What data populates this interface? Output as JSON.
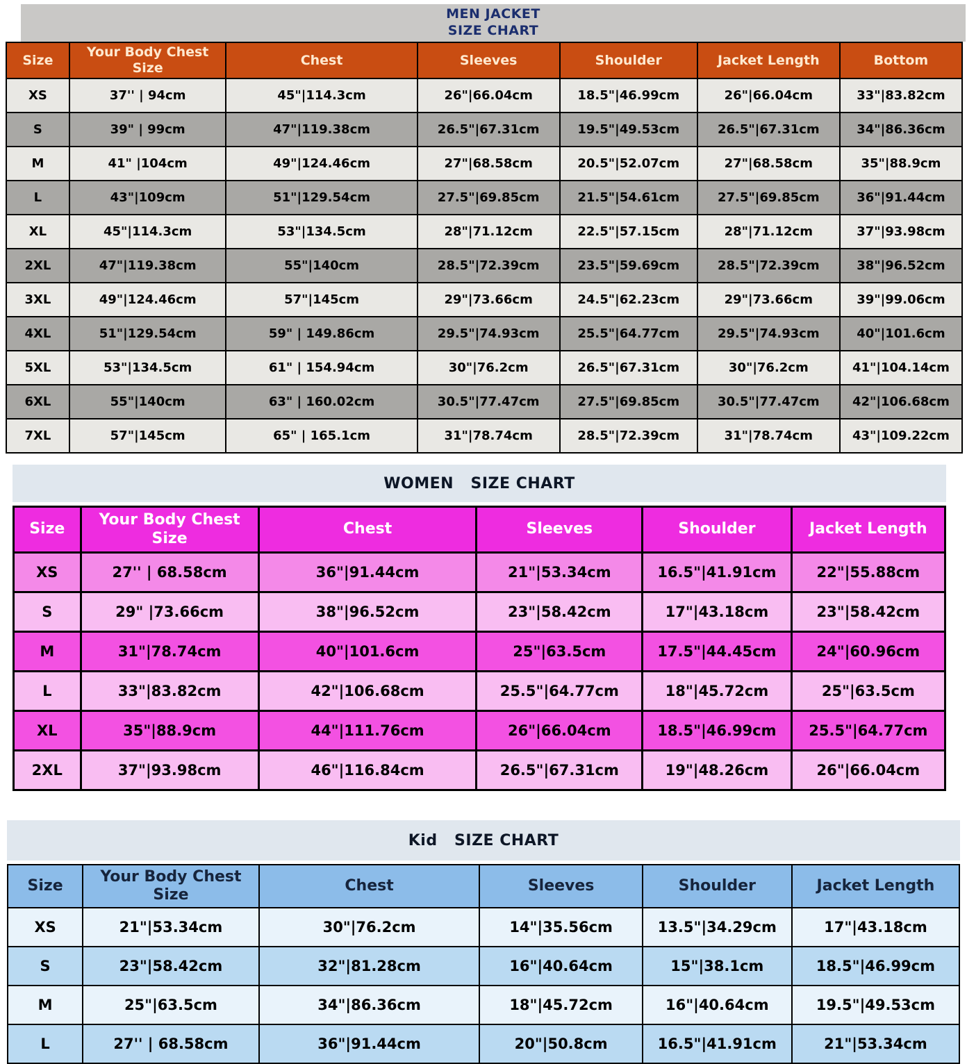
{
  "colors": {
    "men-banner-bg": "#c9c8c6",
    "men-title-text": "#1b2e6e",
    "men-header-bg": "#c94d12",
    "men-header-text": "#ffe9cf",
    "men-row-light": "#e9e8e4",
    "men-row-dark": "#a9a8a5",
    "women-banner-bg": "#e0e7ee",
    "women-title-text": "#0d1626",
    "women-header-bg": "#ee2ce0",
    "women-header-text": "#ffffff",
    "women-row-light": "#f9bdf2",
    "women-row-bright": "#f351e2",
    "women-row-mid": "#f489e8",
    "kid-banner-bg": "#e0e7ee",
    "kid-title-text": "#0d1626",
    "kid-header-bg": "#8cbce9",
    "kid-header-text": "#16243c",
    "kid-row-light": "#e9f3fb",
    "kid-row-mid": "#badaf2",
    "border": "#000000",
    "cell-text": "#000000"
  },
  "men": {
    "title_line1": "MEN JACKET",
    "title_line2": "SIZE CHART",
    "columns": [
      "Size",
      "Your Body Chest Size",
      "Chest",
      "Sleeves",
      "Shoulder",
      "Jacket Length",
      "Bottom"
    ],
    "rows": [
      {
        "size": "XS",
        "shade": "light",
        "cells": [
          "37'' | 94cm",
          "45\"|114.3cm",
          "26\"|66.04cm",
          "18.5\"|46.99cm",
          "26\"|66.04cm",
          "33\"|83.82cm"
        ]
      },
      {
        "size": "S",
        "shade": "dark",
        "cells": [
          "39\" | 99cm",
          "47\"|119.38cm",
          "26.5\"|67.31cm",
          "19.5\"|49.53cm",
          "26.5\"|67.31cm",
          "34\"|86.36cm"
        ]
      },
      {
        "size": "M",
        "shade": "light",
        "cells": [
          "41\" |104cm",
          "49\"|124.46cm",
          "27\"|68.58cm",
          "20.5\"|52.07cm",
          "27\"|68.58cm",
          "35\"|88.9cm"
        ]
      },
      {
        "size": "L",
        "shade": "dark",
        "cells": [
          "43\"|109cm",
          "51\"|129.54cm",
          "27.5\"|69.85cm",
          "21.5\"|54.61cm",
          "27.5\"|69.85cm",
          "36\"|91.44cm"
        ]
      },
      {
        "size": "XL",
        "shade": "light",
        "cells": [
          "45\"|114.3cm",
          "53\"|134.5cm",
          "28\"|71.12cm",
          "22.5\"|57.15cm",
          "28\"|71.12cm",
          "37\"|93.98cm"
        ]
      },
      {
        "size": "2XL",
        "shade": "dark",
        "cells": [
          "47\"|119.38cm",
          "55\"|140cm",
          "28.5\"|72.39cm",
          "23.5\"|59.69cm",
          "28.5\"|72.39cm",
          "38\"|96.52cm"
        ]
      },
      {
        "size": "3XL",
        "shade": "light",
        "cells": [
          "49\"|124.46cm",
          "57\"|145cm",
          "29\"|73.66cm",
          "24.5\"|62.23cm",
          "29\"|73.66cm",
          "39\"|99.06cm"
        ]
      },
      {
        "size": "4XL",
        "shade": "dark",
        "cells": [
          "51\"|129.54cm",
          "59\" | 149.86cm",
          "29.5\"|74.93cm",
          "25.5\"|64.77cm",
          "29.5\"|74.93cm",
          "40\"|101.6cm"
        ]
      },
      {
        "size": "5XL",
        "shade": "light",
        "cells": [
          "53\"|134.5cm",
          "61\" | 154.94cm",
          "30\"|76.2cm",
          "26.5\"|67.31cm",
          "30\"|76.2cm",
          "41\"|104.14cm"
        ]
      },
      {
        "size": "6XL",
        "shade": "dark",
        "cells": [
          "55\"|140cm",
          "63\" | 160.02cm",
          "30.5\"|77.47cm",
          "27.5\"|69.85cm",
          "30.5\"|77.47cm",
          "42\"|106.68cm"
        ]
      },
      {
        "size": "7XL",
        "shade": "light",
        "cells": [
          "57\"|145cm",
          "65\" | 165.1cm",
          "31\"|78.74cm",
          "28.5\"|72.39cm",
          "31\"|78.74cm",
          "43\"|109.22cm"
        ]
      }
    ]
  },
  "women": {
    "title": "WOMEN   SIZE CHART",
    "columns": [
      "Size",
      "Your Body Chest Size",
      "Chest",
      "Sleeves",
      "Shoulder",
      "Jacket Length"
    ],
    "rows": [
      {
        "size": "XS",
        "shade": "mid",
        "cells": [
          "27'' | 68.58cm",
          "36\"|91.44cm",
          "21\"|53.34cm",
          "16.5\"|41.91cm",
          "22\"|55.88cm"
        ]
      },
      {
        "size": "S",
        "shade": "light",
        "cells": [
          "29\" |73.66cm",
          "38\"|96.52cm",
          "23\"|58.42cm",
          "17\"|43.18cm",
          "23\"|58.42cm"
        ]
      },
      {
        "size": "M",
        "shade": "bright",
        "cells": [
          "31\"|78.74cm",
          "40\"|101.6cm",
          "25\"|63.5cm",
          "17.5\"|44.45cm",
          "24\"|60.96cm"
        ]
      },
      {
        "size": "L",
        "shade": "light",
        "cells": [
          "33\"|83.82cm",
          "42\"|106.68cm",
          "25.5\"|64.77cm",
          "18\"|45.72cm",
          "25\"|63.5cm"
        ]
      },
      {
        "size": "XL",
        "shade": "bright",
        "cells": [
          "35\"|88.9cm",
          "44\"|111.76cm",
          "26\"|66.04cm",
          "18.5\"|46.99cm",
          "25.5\"|64.77cm"
        ]
      },
      {
        "size": "2XL",
        "shade": "light",
        "cells": [
          "37\"|93.98cm",
          "46\"|116.84cm",
          "26.5\"|67.31cm",
          "19\"|48.26cm",
          "26\"|66.04cm"
        ]
      }
    ]
  },
  "kid": {
    "title": "Kid   SIZE CHART",
    "columns": [
      "Size",
      "Your Body Chest Size",
      "Chest",
      "Sleeves",
      "Shoulder",
      "Jacket Length"
    ],
    "rows": [
      {
        "size": "XS",
        "shade": "light",
        "cells": [
          "21\"|53.34cm",
          "30\"|76.2cm",
          "14\"|35.56cm",
          "13.5\"|34.29cm",
          "17\"|43.18cm"
        ]
      },
      {
        "size": "S",
        "shade": "mid",
        "cells": [
          "23\"|58.42cm",
          "32\"|81.28cm",
          "16\"|40.64cm",
          "15\"|38.1cm",
          "18.5\"|46.99cm"
        ]
      },
      {
        "size": "M",
        "shade": "light",
        "cells": [
          "25\"|63.5cm",
          "34\"|86.36cm",
          "18\"|45.72cm",
          "16\"|40.64cm",
          "19.5\"|49.53cm"
        ]
      },
      {
        "size": "L",
        "shade": "mid",
        "cells": [
          "27'' | 68.58cm",
          "36\"|91.44cm",
          "20\"|50.8cm",
          "16.5\"|41.91cm",
          "21\"|53.34cm"
        ]
      }
    ]
  }
}
